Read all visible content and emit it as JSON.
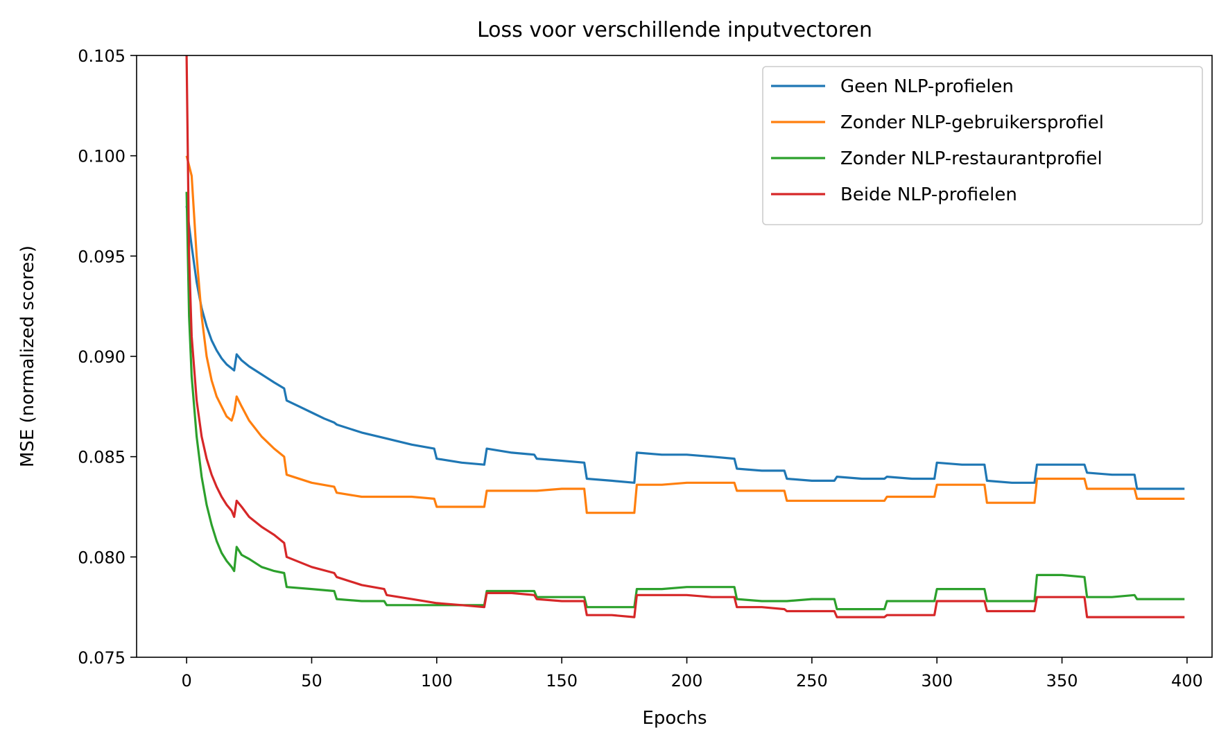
{
  "chart_data": {
    "type": "line",
    "title": "Loss voor verschillende inputvectoren",
    "xlabel": "Epochs",
    "ylabel": "MSE (normalized scores)",
    "xlim": [
      -20,
      410
    ],
    "ylim": [
      0.075,
      0.105
    ],
    "xticks": [
      "0",
      "50",
      "100",
      "150",
      "200",
      "250",
      "300",
      "350",
      "400"
    ],
    "yticks": [
      "0.075",
      "0.080",
      "0.085",
      "0.090",
      "0.095",
      "0.100",
      "0.105"
    ],
    "grid": false,
    "legend_position": "top-right",
    "series": [
      {
        "name": "Geen NLP-profielen",
        "color": "#1f77b4",
        "x": [
          0,
          2,
          4,
          6,
          8,
          10,
          12,
          14,
          16,
          18,
          19,
          20,
          22,
          25,
          30,
          35,
          39,
          40,
          45,
          50,
          55,
          59,
          60,
          70,
          80,
          90,
          99,
          100,
          110,
          119,
          120,
          130,
          139,
          140,
          150,
          159,
          160,
          170,
          179,
          180,
          190,
          200,
          210,
          219,
          220,
          230,
          239,
          240,
          250,
          259,
          260,
          270,
          279,
          280,
          290,
          299,
          300,
          310,
          319,
          320,
          330,
          339,
          340,
          350,
          359,
          360,
          370,
          379,
          380,
          390,
          399
        ],
        "values": [
          0.0975,
          0.0955,
          0.0937,
          0.0924,
          0.0915,
          0.0908,
          0.0903,
          0.0899,
          0.0896,
          0.0894,
          0.0893,
          0.0901,
          0.0898,
          0.0895,
          0.0891,
          0.0887,
          0.0884,
          0.0878,
          0.0875,
          0.0872,
          0.0869,
          0.0867,
          0.0866,
          0.0862,
          0.0859,
          0.0856,
          0.0854,
          0.0849,
          0.0847,
          0.0846,
          0.0854,
          0.0852,
          0.0851,
          0.0849,
          0.0848,
          0.0847,
          0.0839,
          0.0838,
          0.0837,
          0.0852,
          0.0851,
          0.0851,
          0.085,
          0.0849,
          0.0844,
          0.0843,
          0.0843,
          0.0839,
          0.0838,
          0.0838,
          0.084,
          0.0839,
          0.0839,
          0.084,
          0.0839,
          0.0839,
          0.0847,
          0.0846,
          0.0846,
          0.0838,
          0.0837,
          0.0837,
          0.0846,
          0.0846,
          0.0846,
          0.0842,
          0.0841,
          0.0841,
          0.0834,
          0.0834,
          0.0834
        ]
      },
      {
        "name": "Zonder NLP-gebruikersprofiel",
        "color": "#ff7f0e",
        "x": [
          0,
          2,
          4,
          6,
          8,
          10,
          12,
          14,
          16,
          18,
          19,
          20,
          22,
          25,
          30,
          35,
          39,
          40,
          50,
          59,
          60,
          70,
          80,
          90,
          99,
          100,
          110,
          119,
          120,
          130,
          140,
          150,
          159,
          160,
          170,
          179,
          180,
          190,
          200,
          210,
          219,
          220,
          230,
          239,
          240,
          250,
          259,
          260,
          270,
          279,
          280,
          290,
          299,
          300,
          310,
          319,
          320,
          330,
          339,
          340,
          350,
          359,
          360,
          370,
          379,
          380,
          390,
          399
        ],
        "values": [
          0.1,
          0.099,
          0.095,
          0.092,
          0.09,
          0.0888,
          0.088,
          0.0875,
          0.087,
          0.0868,
          0.0872,
          0.088,
          0.0875,
          0.0868,
          0.086,
          0.0854,
          0.085,
          0.0841,
          0.0837,
          0.0835,
          0.0832,
          0.083,
          0.083,
          0.083,
          0.0829,
          0.0825,
          0.0825,
          0.0825,
          0.0833,
          0.0833,
          0.0833,
          0.0834,
          0.0834,
          0.0822,
          0.0822,
          0.0822,
          0.0836,
          0.0836,
          0.0837,
          0.0837,
          0.0837,
          0.0833,
          0.0833,
          0.0833,
          0.0828,
          0.0828,
          0.0828,
          0.0828,
          0.0828,
          0.0828,
          0.083,
          0.083,
          0.083,
          0.0836,
          0.0836,
          0.0836,
          0.0827,
          0.0827,
          0.0827,
          0.0839,
          0.0839,
          0.0839,
          0.0834,
          0.0834,
          0.0834,
          0.0829,
          0.0829,
          0.0829
        ]
      },
      {
        "name": "Zonder NLP-restaurantprofiel",
        "color": "#2ca02c",
        "x": [
          0,
          1,
          2,
          4,
          6,
          8,
          10,
          12,
          14,
          16,
          18,
          19,
          20,
          22,
          25,
          30,
          35,
          39,
          40,
          50,
          59,
          60,
          70,
          79,
          80,
          90,
          99,
          100,
          110,
          119,
          120,
          130,
          139,
          140,
          150,
          159,
          160,
          170,
          179,
          180,
          190,
          200,
          210,
          219,
          220,
          230,
          240,
          250,
          259,
          260,
          270,
          279,
          280,
          290,
          299,
          300,
          310,
          319,
          320,
          330,
          339,
          340,
          350,
          359,
          360,
          370,
          379,
          380,
          390,
          399
        ],
        "values": [
          0.0982,
          0.092,
          0.089,
          0.086,
          0.084,
          0.0826,
          0.0816,
          0.0808,
          0.0802,
          0.0798,
          0.0795,
          0.0793,
          0.0805,
          0.0801,
          0.0799,
          0.0795,
          0.0793,
          0.0792,
          0.0785,
          0.0784,
          0.0783,
          0.0779,
          0.0778,
          0.0778,
          0.0776,
          0.0776,
          0.0776,
          0.0776,
          0.0776,
          0.0776,
          0.0783,
          0.0783,
          0.0783,
          0.078,
          0.078,
          0.078,
          0.0775,
          0.0775,
          0.0775,
          0.0784,
          0.0784,
          0.0785,
          0.0785,
          0.0785,
          0.0779,
          0.0778,
          0.0778,
          0.0779,
          0.0779,
          0.0774,
          0.0774,
          0.0774,
          0.0778,
          0.0778,
          0.0778,
          0.0784,
          0.0784,
          0.0784,
          0.0778,
          0.0778,
          0.0778,
          0.0791,
          0.0791,
          0.079,
          0.078,
          0.078,
          0.0781,
          0.0779,
          0.0779,
          0.0779
        ]
      },
      {
        "name": "Beide NLP-profielen",
        "color": "#d62728",
        "x": [
          0,
          1,
          2,
          4,
          6,
          8,
          10,
          12,
          14,
          16,
          18,
          19,
          20,
          22,
          25,
          30,
          35,
          39,
          40,
          50,
          59,
          60,
          70,
          79,
          80,
          90,
          100,
          110,
          119,
          120,
          130,
          139,
          140,
          150,
          159,
          160,
          170,
          179,
          180,
          190,
          200,
          210,
          219,
          220,
          230,
          239,
          240,
          250,
          259,
          260,
          270,
          279,
          280,
          290,
          299,
          300,
          310,
          319,
          320,
          330,
          339,
          340,
          350,
          359,
          360,
          370,
          380,
          390,
          399
        ],
        "values": [
          0.105,
          0.095,
          0.091,
          0.0878,
          0.086,
          0.0849,
          0.0841,
          0.0835,
          0.083,
          0.0826,
          0.0823,
          0.082,
          0.0828,
          0.0825,
          0.082,
          0.0815,
          0.0811,
          0.0807,
          0.08,
          0.0795,
          0.0792,
          0.079,
          0.0786,
          0.0784,
          0.0781,
          0.0779,
          0.0777,
          0.0776,
          0.0775,
          0.0782,
          0.0782,
          0.0781,
          0.0779,
          0.0778,
          0.0778,
          0.0771,
          0.0771,
          0.077,
          0.0781,
          0.0781,
          0.0781,
          0.078,
          0.078,
          0.0775,
          0.0775,
          0.0774,
          0.0773,
          0.0773,
          0.0773,
          0.077,
          0.077,
          0.077,
          0.0771,
          0.0771,
          0.0771,
          0.0778,
          0.0778,
          0.0778,
          0.0773,
          0.0773,
          0.0773,
          0.078,
          0.078,
          0.078,
          0.077,
          0.077,
          0.077,
          0.077,
          0.077
        ]
      }
    ]
  }
}
